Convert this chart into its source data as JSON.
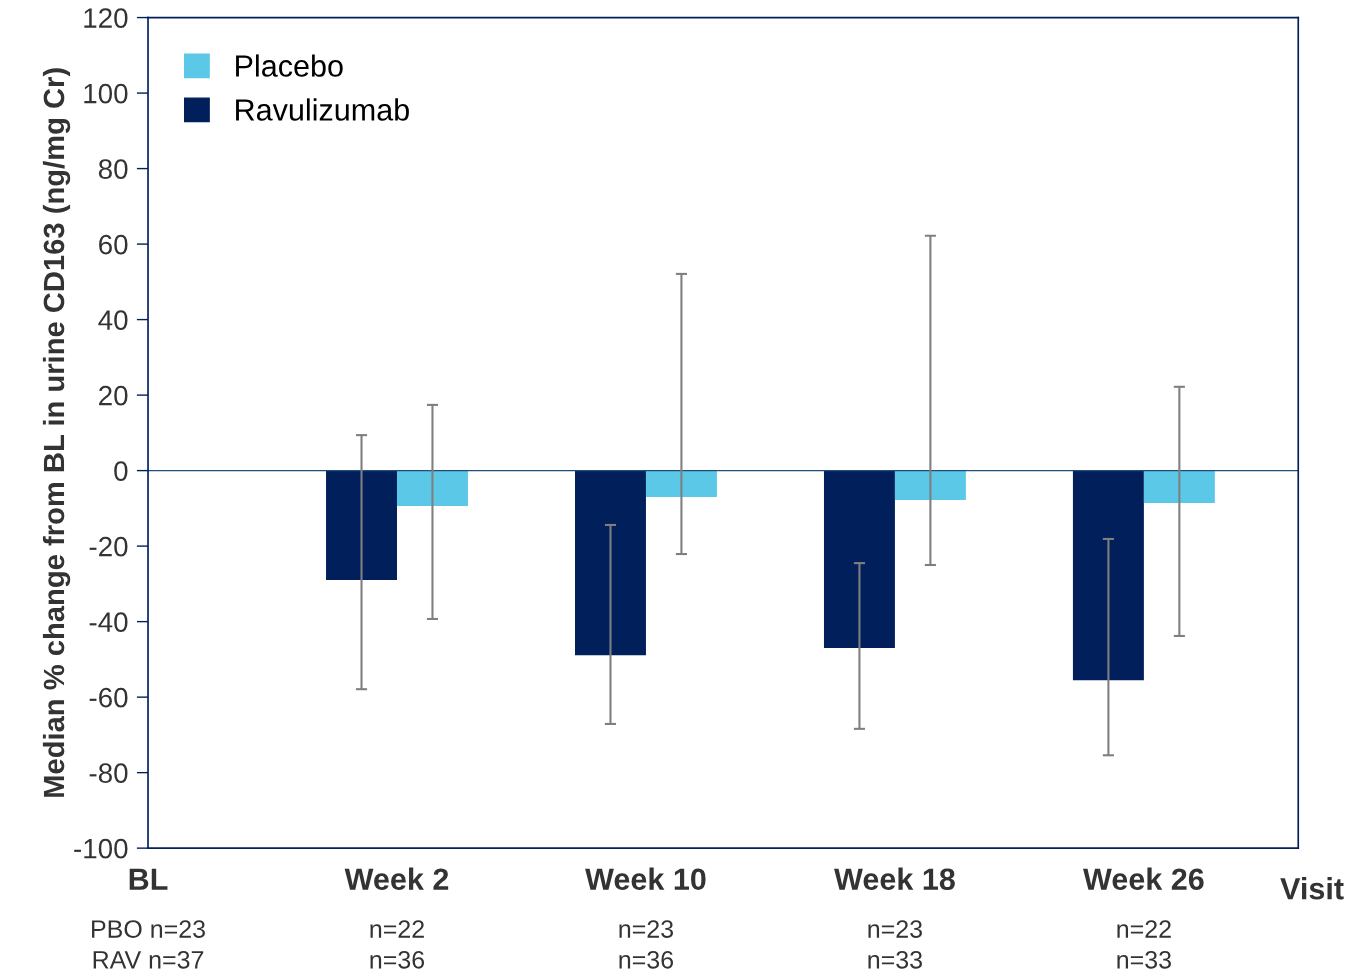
{
  "chart_data": {
    "type": "bar",
    "ylabel": "Median % change from BL in urine CD163 (ng/mg Cr)",
    "xlabel": "Visit",
    "categories": [
      "BL",
      "Week 2",
      "Week 10",
      "Week 18",
      "Week 26"
    ],
    "series": [
      {
        "name": "Ravulizumab",
        "color": "#001f5b",
        "values": [
          null,
          -29,
          -48.9,
          -47,
          -55.5
        ],
        "errors": [
          null,
          [
            -57.9,
            9.4
          ],
          [
            -67.1,
            -14.4
          ],
          [
            -68.4,
            -24.5
          ],
          [
            -75.4,
            -18.1
          ]
        ]
      },
      {
        "name": "Placebo",
        "color": "#5bc8e8",
        "values": [
          null,
          -9.4,
          -7,
          -7.8,
          -8.6
        ],
        "errors": [
          null,
          [
            -39.3,
            17.4
          ],
          [
            -22.1,
            52.1
          ],
          [
            -25,
            62.2
          ],
          [
            -43.8,
            22.2
          ]
        ]
      }
    ],
    "ylim": [
      -100,
      120
    ],
    "yticks": [
      -100,
      -80,
      -60,
      -40,
      -20,
      0,
      20,
      40,
      60,
      80,
      100,
      120
    ],
    "ref_lines": [
      {
        "axis": "y",
        "value": 0,
        "color": "#1f4e79"
      }
    ],
    "grid": false,
    "legend": "top left",
    "annotations": [
      "PBO n=23",
      "RAV n=37",
      "n=22",
      "n=36",
      "n=23",
      "n=36",
      "n=23",
      "n=33",
      "n=22",
      "n=33"
    ]
  }
}
